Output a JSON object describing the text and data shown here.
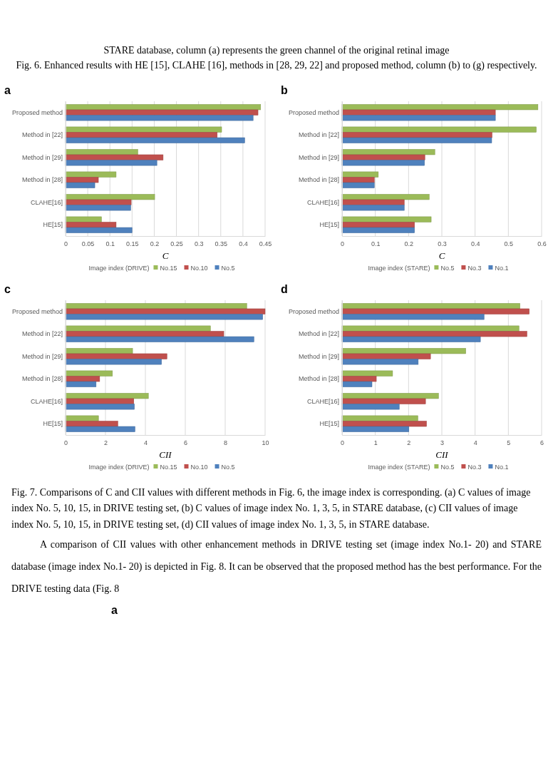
{
  "chart_data": [
    {
      "type": "bar",
      "orientation": "horizontal",
      "title": "a",
      "xlabel": "C",
      "legend_title": "Image index (DRIVE)",
      "legend": "bottom",
      "grid": "x",
      "annotations": [
        "STARE database, column (a) represents the green channel of the original retinal image",
        "Fig. 6. Enhanced results with HE [15], CLAHE [16], methods in [28, 29, 22] and proposed method, column (b) to (g) respectively."
      ],
      "categories": [
        "Proposed method",
        "Method in [22]",
        "Method in [29]",
        "Method in [28]",
        "CLAHE[16]",
        "HE[15]"
      ],
      "xlim": [
        0,
        0.45
      ],
      "xticks": [
        0,
        0.05,
        0.1,
        0.15,
        0.2,
        0.25,
        0.3,
        0.35,
        0.4,
        0.45
      ],
      "series": [
        {
          "name": "No.15",
          "color": "#9bbb59",
          "values": [
            0.44,
            0.352,
            0.163,
            0.114,
            0.201,
            0.081
          ]
        },
        {
          "name": "No.10",
          "color": "#c0504d",
          "values": [
            0.434,
            0.342,
            0.22,
            0.074,
            0.148,
            0.114
          ]
        },
        {
          "name": "No.5",
          "color": "#4f81bd",
          "values": [
            0.423,
            0.404,
            0.206,
            0.066,
            0.147,
            0.15
          ]
        }
      ]
    },
    {
      "type": "bar",
      "orientation": "horizontal",
      "title": "b",
      "xlabel": "C",
      "legend_title": "Image index (STARE)",
      "legend": "bottom",
      "grid": "x",
      "categories": [
        "Proposed method",
        "Method in [22]",
        "Method in [29]",
        "Method in [28]",
        "CLAHE[16]",
        "HE[15]"
      ],
      "xlim": [
        0,
        0.6
      ],
      "xticks": [
        0,
        0.1,
        0.2,
        0.3,
        0.4,
        0.5,
        0.6
      ],
      "series": [
        {
          "name": "No.5",
          "color": "#9bbb59",
          "values": [
            0.589,
            0.584,
            0.279,
            0.109,
            0.262,
            0.268
          ]
        },
        {
          "name": "No.3",
          "color": "#c0504d",
          "values": [
            0.461,
            0.451,
            0.249,
            0.097,
            0.187,
            0.218
          ]
        },
        {
          "name": "No.1",
          "color": "#4f81bd",
          "values": [
            0.461,
            0.45,
            0.248,
            0.097,
            0.187,
            0.218
          ]
        }
      ]
    },
    {
      "type": "bar",
      "orientation": "horizontal",
      "title": "c",
      "xlabel": "CII",
      "legend_title": "Image index (DRIVE)",
      "legend": "bottom",
      "grid": "x",
      "categories": [
        "Proposed method",
        "Method in [22]",
        "Method in [29]",
        "Method in [28]",
        "CLAHE[16]",
        "HE[15]"
      ],
      "xlim": [
        0,
        10
      ],
      "xticks": [
        0,
        2,
        4,
        6,
        8,
        10
      ],
      "series": [
        {
          "name": "No.15",
          "color": "#9bbb59",
          "values": [
            9.08,
            7.26,
            3.36,
            2.35,
            4.15,
            1.65
          ]
        },
        {
          "name": "No.10",
          "color": "#c0504d",
          "values": [
            10,
            7.93,
            5.08,
            1.71,
            3.42,
            2.62
          ]
        },
        {
          "name": "No.5",
          "color": "#4f81bd",
          "values": [
            9.88,
            9.44,
            4.81,
            1.53,
            3.45,
            3.48
          ]
        }
      ]
    },
    {
      "type": "bar",
      "orientation": "horizontal",
      "title": "d",
      "xlabel": "CII",
      "legend_title": "Image index (STARE)",
      "legend": "bottom",
      "grid": "x",
      "annotations": [
        "Fig. 7. Comparisons of C and CII values with different methods in Fig. 6, the image index is corresponding. (a) C values of image index No. 5, 10, 15, in DRIVE testing set, (b) C values of image index No. 1, 3, 5, in STARE database, (c) CII values of image index No. 5, 10, 15, in DRIVE testing set, (d) CII values of image index No. 1, 3, 5, in STARE database.",
        "A comparison of CII values with other enhancement methods in DRIVE testing set (image index No.1- 20) and STARE database (image index No.1- 20) is depicted in Fig. 8. It can be observed that the proposed method has the best performance. For the DRIVE testing data (Fig. 8",
        "a"
      ],
      "categories": [
        "Proposed method",
        "Method in [22]",
        "Method in [29]",
        "Method in [28]",
        "CLAHE[16]",
        "HE[15]"
      ],
      "xlim": [
        0,
        6
      ],
      "xticks": [
        0,
        1,
        2,
        3,
        4,
        5,
        6
      ],
      "series": [
        {
          "name": "No.5",
          "color": "#9bbb59",
          "values": [
            5.35,
            5.32,
            3.72,
            1.52,
            2.9,
            2.28
          ]
        },
        {
          "name": "No.3",
          "color": "#c0504d",
          "values": [
            5.63,
            5.56,
            2.66,
            1.03,
            2.51,
            2.54
          ]
        },
        {
          "name": "No.1",
          "color": "#4f81bd",
          "values": [
            4.27,
            4.16,
            2.29,
            0.9,
            1.72,
            2.01
          ]
        }
      ]
    }
  ]
}
